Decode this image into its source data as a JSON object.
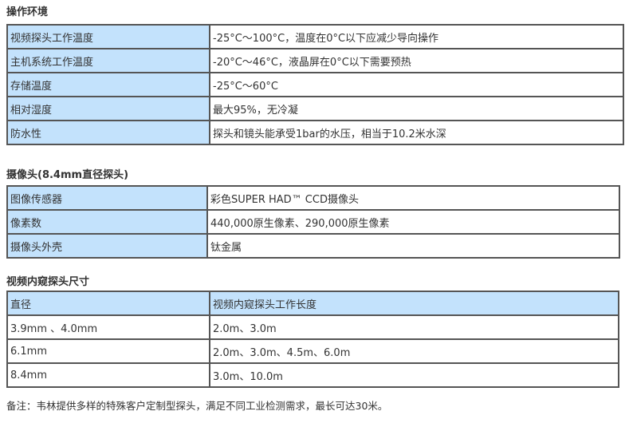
{
  "sections": [
    {
      "title": "操作环境",
      "rows": [
        [
          "视频探头工作温度",
          "-25°C～100°C，温度在0°C以下应减少导向操作"
        ],
        [
          "主机系统工作温度",
          "-20°C～46°C，液晶屏在0°C以下需要预热"
        ],
        [
          "存储温度",
          "-25°C～60°C"
        ],
        [
          "相对湿度",
          "最大95%，无冷凝"
        ],
        [
          "防水性",
          "探头和镜头能承受1bar的水压，相当于10.2米水深"
        ]
      ]
    },
    {
      "title": "摄像头(8.4mm直径探头)",
      "rows": [
        [
          "图像传感器",
          "彩色SUPER HAD™ CCD摄像头"
        ],
        [
          "像素数",
          "440,000原生像素、290,000原生像素"
        ],
        [
          "摄像头外壳",
          "钛金属"
        ]
      ]
    },
    {
      "title": "视频内窥探头尺寸",
      "header": [
        "直径",
        "视频内窥探头工作长度"
      ],
      "rows": [
        [
          "3.9mm 、4.0mm",
          "2.0m、3.0m"
        ],
        [
          "6.1mm",
          "2.0m、3.0m、4.5m、6.0m"
        ],
        [
          "8.4mm",
          "3.0m、10.0m"
        ]
      ]
    }
  ],
  "note": "备注：韦林提供多样的特殊客户定制型探头，满足不同工业检测需求，最长可达30米。"
}
